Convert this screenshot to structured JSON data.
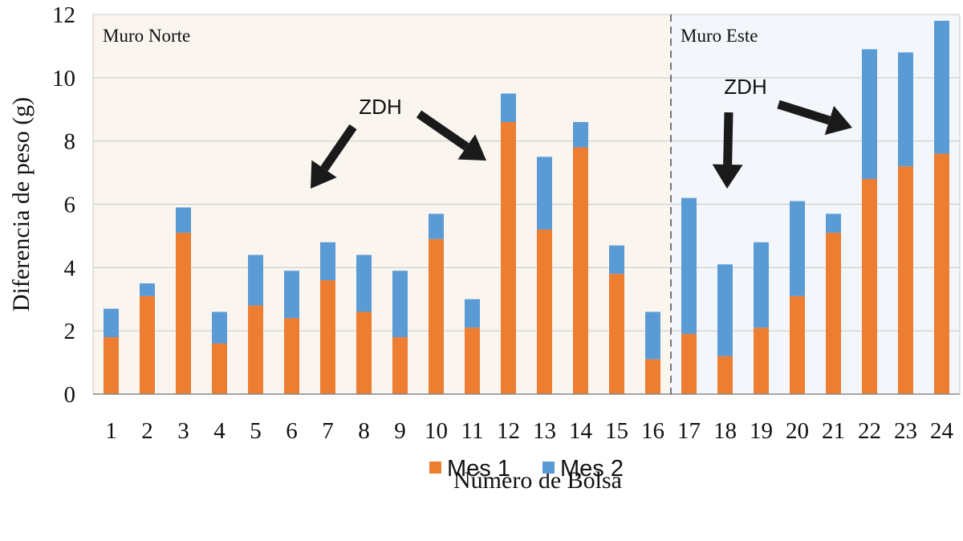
{
  "chart_data": {
    "type": "bar",
    "stacked": true,
    "title": "",
    "xlabel": "Número de Bolsa",
    "ylabel": "Diferencia de peso (g)",
    "ylim": [
      0,
      12
    ],
    "yticks": [
      0,
      2,
      4,
      6,
      8,
      10,
      12
    ],
    "grid": true,
    "legend_position": "bottom-center",
    "categories": [
      "1",
      "2",
      "3",
      "4",
      "5",
      "6",
      "7",
      "8",
      "9",
      "10",
      "11",
      "12",
      "13",
      "14",
      "15",
      "16",
      "17",
      "18",
      "19",
      "20",
      "21",
      "22",
      "23",
      "24"
    ],
    "series": [
      {
        "name": "Mes 1",
        "color": "#ED7D31",
        "values": [
          1.8,
          3.1,
          5.1,
          1.6,
          2.8,
          2.4,
          3.6,
          2.6,
          1.8,
          4.9,
          2.1,
          8.6,
          5.2,
          7.8,
          3.8,
          1.1,
          1.9,
          1.2,
          2.1,
          3.1,
          5.1,
          6.8,
          7.2,
          7.6
        ]
      },
      {
        "name": "Mes 2",
        "color": "#5B9BD5",
        "values": [
          0.9,
          0.4,
          0.8,
          1.0,
          1.6,
          1.5,
          1.2,
          1.8,
          2.1,
          0.8,
          0.9,
          0.9,
          2.3,
          0.8,
          0.9,
          1.5,
          4.3,
          2.9,
          2.7,
          3.0,
          0.6,
          4.1,
          3.6,
          4.2
        ]
      }
    ],
    "regions": [
      {
        "label": "Muro Norte",
        "from_category": "1",
        "to_category": "16",
        "color": "#FAF5EF"
      },
      {
        "label": "Muro Este",
        "from_category": "17",
        "to_category": "24",
        "color": "#F3F6FA"
      }
    ],
    "annotations": [
      {
        "text": "ZDH",
        "region": "Muro Norte",
        "points_to_categories": [
          "6",
          "12"
        ]
      },
      {
        "text": "ZDH",
        "region": "Muro Este",
        "points_to_categories": [
          "18",
          "22"
        ]
      }
    ]
  }
}
